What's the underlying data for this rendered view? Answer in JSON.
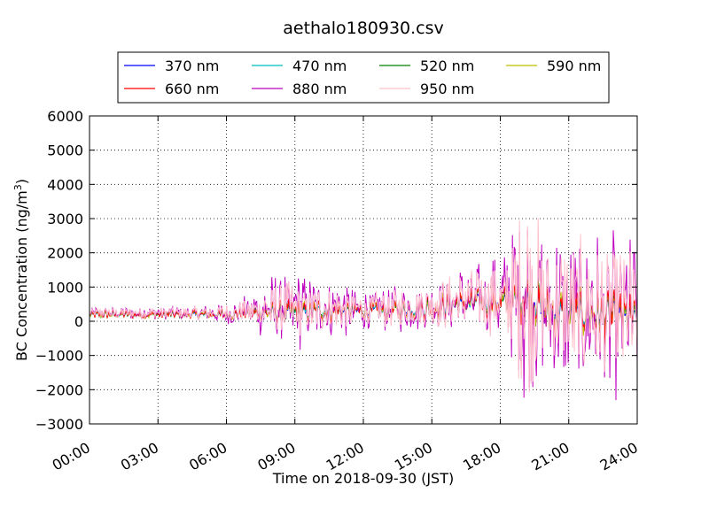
{
  "chart_data": {
    "type": "line",
    "title": "aethalo180930.csv",
    "xlabel": "Time on 2018-09-30 (JST)",
    "ylabel": "BC Concentration (ng/m",
    "ylabel_sup": "3",
    "ylabel_end": ")",
    "x_ticks": [
      "00:00",
      "03:00",
      "06:00",
      "09:00",
      "12:00",
      "15:00",
      "18:00",
      "21:00",
      "24:00"
    ],
    "x_tick_hours": [
      0,
      3,
      6,
      9,
      12,
      15,
      18,
      21,
      24
    ],
    "xlim_hours": [
      0,
      24
    ],
    "ylim": [
      -3000,
      6000
    ],
    "y_ticks": [
      -3000,
      -2000,
      -1000,
      0,
      1000,
      2000,
      3000,
      4000,
      5000,
      6000
    ],
    "y_tick_labels": [
      "−3000",
      "−2000",
      "−1000",
      "0",
      "1000",
      "2000",
      "3000",
      "4000",
      "5000",
      "6000"
    ],
    "grid": true,
    "legend_position": "top",
    "envelope_hours": [
      0,
      1,
      2,
      3,
      4,
      5,
      6,
      7,
      7.5,
      8,
      9,
      10,
      11,
      12,
      13,
      14,
      15,
      16,
      17,
      18,
      18.5,
      19,
      19.5,
      20,
      21,
      22,
      23,
      24
    ],
    "series": [
      {
        "name": "370 nm",
        "color": "#0000ff",
        "base": [
          200,
          200,
          200,
          200,
          200,
          200,
          200,
          250,
          250,
          250,
          250,
          300,
          300,
          300,
          300,
          350,
          400,
          500,
          550,
          550,
          600,
          700,
          600,
          300,
          200,
          200,
          150,
          100
        ],
        "amp": [
          100,
          100,
          100,
          100,
          100,
          100,
          150,
          150,
          200,
          250,
          300,
          250,
          250,
          200,
          200,
          250,
          300,
          300,
          300,
          350,
          400,
          500,
          600,
          700,
          600,
          500,
          500,
          400
        ]
      },
      {
        "name": "470 nm",
        "color": "#00bfbf",
        "base": [
          200,
          200,
          200,
          200,
          200,
          200,
          200,
          250,
          250,
          250,
          250,
          300,
          300,
          300,
          300,
          350,
          400,
          500,
          550,
          550,
          600,
          700,
          600,
          300,
          200,
          200,
          150,
          100
        ],
        "amp": [
          100,
          110,
          110,
          110,
          110,
          110,
          160,
          170,
          220,
          280,
          330,
          280,
          280,
          230,
          230,
          280,
          330,
          330,
          340,
          390,
          450,
          570,
          680,
          800,
          690,
          580,
          580,
          470
        ]
      },
      {
        "name": "520 nm",
        "color": "#008000",
        "base": [
          200,
          200,
          200,
          200,
          200,
          200,
          200,
          250,
          250,
          250,
          250,
          300,
          300,
          300,
          300,
          350,
          400,
          500,
          550,
          550,
          600,
          700,
          600,
          300,
          200,
          200,
          150,
          100
        ],
        "amp": [
          100,
          120,
          120,
          120,
          120,
          120,
          170,
          190,
          240,
          310,
          360,
          310,
          310,
          260,
          260,
          310,
          360,
          360,
          380,
          430,
          500,
          640,
          760,
          900,
          780,
          660,
          660,
          540
        ]
      },
      {
        "name": "590 nm",
        "color": "#bfbf00",
        "base": [
          200,
          200,
          200,
          200,
          200,
          200,
          200,
          250,
          250,
          250,
          250,
          300,
          300,
          300,
          300,
          350,
          400,
          500,
          550,
          550,
          600,
          700,
          600,
          300,
          200,
          200,
          150,
          100
        ],
        "amp": [
          110,
          130,
          130,
          130,
          130,
          130,
          180,
          210,
          260,
          340,
          390,
          340,
          340,
          290,
          290,
          340,
          390,
          390,
          420,
          470,
          550,
          710,
          840,
          1000,
          870,
          740,
          740,
          610
        ]
      },
      {
        "name": "660 nm",
        "color": "#ff0000",
        "base": [
          200,
          200,
          200,
          200,
          200,
          200,
          200,
          250,
          250,
          250,
          250,
          300,
          300,
          300,
          300,
          350,
          400,
          500,
          550,
          550,
          600,
          700,
          600,
          300,
          200,
          200,
          150,
          100
        ],
        "amp": [
          120,
          140,
          140,
          140,
          140,
          140,
          190,
          230,
          280,
          370,
          420,
          370,
          370,
          320,
          320,
          370,
          420,
          420,
          460,
          510,
          600,
          780,
          920,
          1100,
          960,
          820,
          820,
          680
        ]
      },
      {
        "name": "880 nm",
        "color": "#bf00bf",
        "base": [
          250,
          250,
          250,
          250,
          250,
          250,
          250,
          300,
          300,
          350,
          350,
          350,
          350,
          350,
          350,
          400,
          500,
          600,
          650,
          650,
          700,
          800,
          700,
          400,
          300,
          300,
          250,
          200
        ],
        "amp": [
          150,
          180,
          180,
          180,
          180,
          200,
          300,
          450,
          700,
          1000,
          1200,
          900,
          800,
          600,
          600,
          700,
          800,
          900,
          1000,
          1300,
          1800,
          3500,
          2800,
          2200,
          2200,
          2300,
          2400,
          2300
        ]
      },
      {
        "name": "950 nm",
        "color": "#ffc0cb",
        "base": [
          250,
          250,
          250,
          250,
          250,
          250,
          250,
          300,
          300,
          350,
          350,
          350,
          350,
          350,
          350,
          400,
          500,
          600,
          650,
          650,
          700,
          800,
          700,
          400,
          300,
          300,
          250,
          200
        ],
        "amp": [
          140,
          160,
          160,
          160,
          160,
          180,
          250,
          350,
          500,
          700,
          800,
          650,
          600,
          500,
          500,
          600,
          700,
          800,
          900,
          1100,
          1500,
          3000,
          2500,
          2000,
          2000,
          2100,
          2200,
          2100
        ]
      }
    ]
  }
}
